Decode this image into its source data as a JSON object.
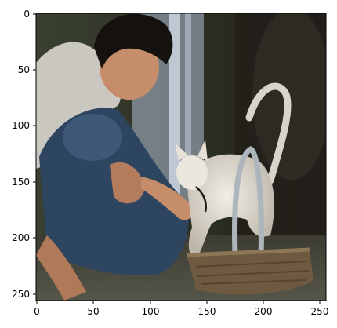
{
  "image": {
    "description_icon": "photo-boy-crouching-with-white-kitten-on-wicker-basket",
    "frame_color": "#000000",
    "colors": {
      "background_dark": "#2a2a22",
      "ground": "#4a4a3e",
      "shirt": "#c9c7c0",
      "jeans": "#2e4560",
      "skin": "#c68d6a",
      "hair": "#15110e",
      "kitten": "#e2ddd3",
      "basket": "#6e5a40",
      "curtain": "#9ea7b4"
    }
  },
  "axes": {
    "x_ticks": [
      "0",
      "50",
      "100",
      "150",
      "200",
      "250"
    ],
    "y_ticks": [
      "0",
      "50",
      "100",
      "150",
      "200",
      "250"
    ],
    "x_range": [
      0,
      256
    ],
    "y_range": [
      0,
      256
    ]
  }
}
